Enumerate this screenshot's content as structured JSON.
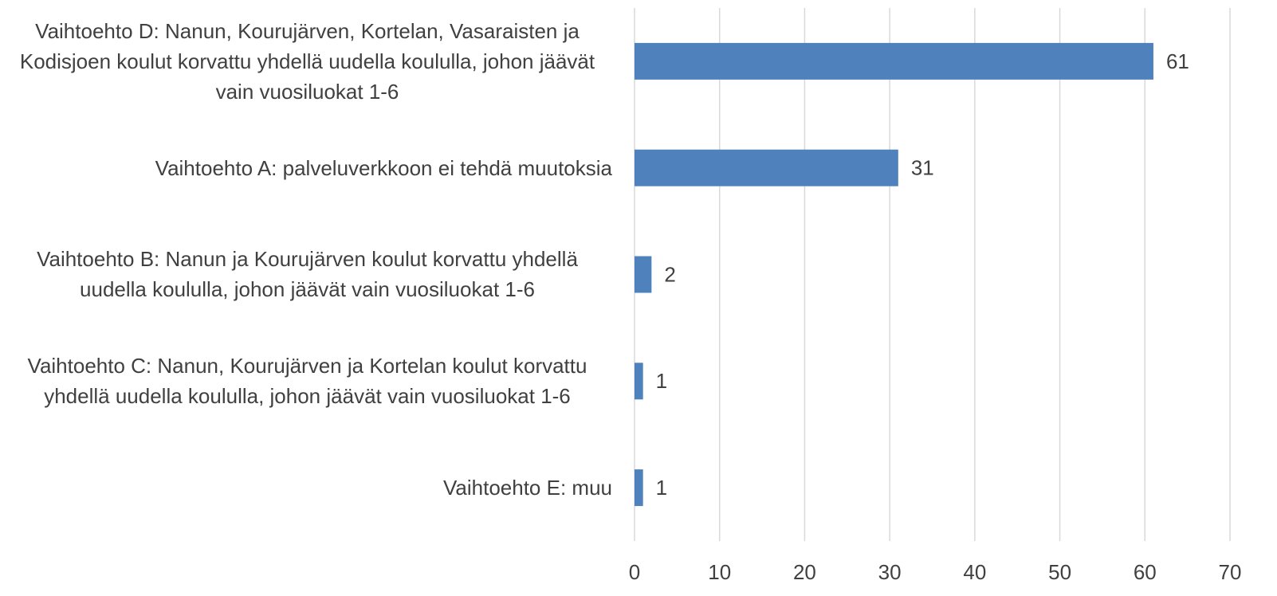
{
  "chart_data": {
    "type": "bar",
    "orientation": "horizontal",
    "categories": [
      "Vaihtoehto D: Nanun, Kourujärven, Kortelan, Vasaraisten ja Kodisjoen koulut korvattu yhdellä uudella koululla, johon jäävät vain vuosiluokat 1-6",
      "Vaihtoehto A: palveluverkkoon ei tehdä muutoksia",
      "Vaihtoehto B: Nanun ja Kourujärven koulut korvattu yhdellä uudella koululla, johon jäävät vain vuosiluokat 1-6",
      "Vaihtoehto C: Nanun, Kourujärven ja Kortelan koulut korvattu yhdellä uudella koululla, johon jäävät vain vuosiluokat 1-6",
      "Vaihtoehto E: muu"
    ],
    "values": [
      61,
      31,
      2,
      1,
      1
    ],
    "color": "#4f81bd",
    "xlim": [
      0,
      70
    ],
    "xticks": [
      0,
      10,
      20,
      30,
      40,
      50,
      60,
      70
    ],
    "grid": true
  }
}
